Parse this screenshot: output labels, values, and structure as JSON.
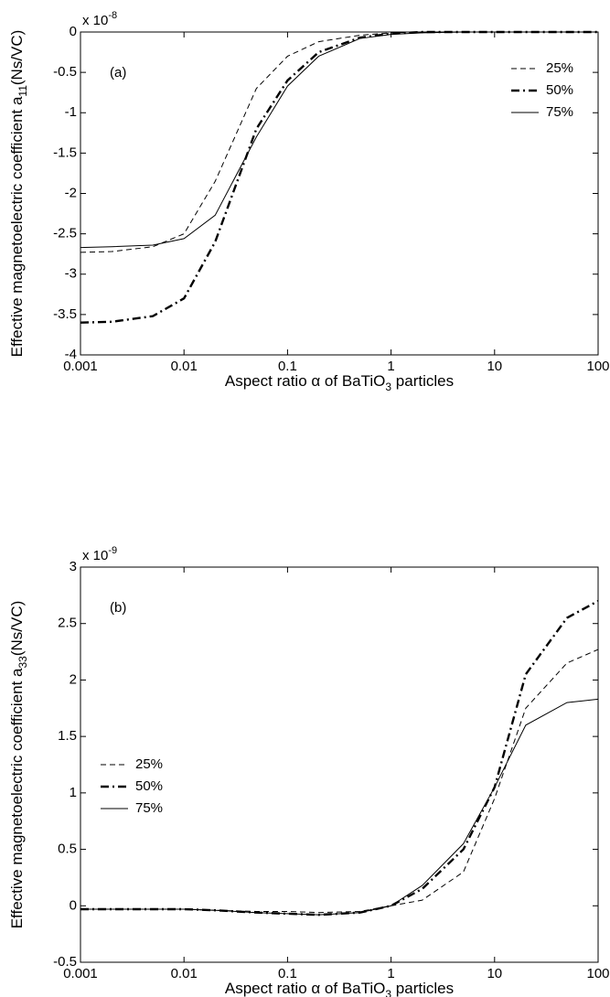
{
  "chart_data": [
    {
      "type": "line",
      "panel_label": "(a)",
      "multiplier": "x 10",
      "multiplier_exp": "-8",
      "xlabel": "Aspect ratio α of BaTiO",
      "xlabel_sub": "3",
      "xlabel_end": " particles",
      "ylabel": "Effective magnetoelectric coefficient a",
      "ylabel_sub": "11",
      "ylabel_end": "(Ns/VC)",
      "xscale": "log",
      "xlim": [
        0.001,
        100
      ],
      "xticks": [
        0.001,
        0.01,
        0.1,
        1,
        10,
        100
      ],
      "ylim": [
        -4,
        0
      ],
      "yticks": [
        -4,
        -3.5,
        -3,
        -2.5,
        -2,
        -1.5,
        -1,
        -0.5,
        0
      ],
      "legend": "upper right",
      "x": [
        0.001,
        0.002,
        0.005,
        0.01,
        0.02,
        0.05,
        0.1,
        0.2,
        0.5,
        1,
        2,
        5,
        10,
        20,
        50,
        100
      ],
      "series": [
        {
          "name": "25%",
          "color": "#000000",
          "dash": "dashed",
          "values": [
            -2.73,
            -2.72,
            -2.66,
            -2.5,
            -1.85,
            -0.7,
            -0.3,
            -0.12,
            -0.04,
            -0.01,
            0,
            0,
            0,
            0,
            0,
            0
          ]
        },
        {
          "name": "50%",
          "color": "#000000",
          "dash": "dashdot",
          "values": [
            -3.6,
            -3.59,
            -3.52,
            -3.3,
            -2.6,
            -1.2,
            -0.6,
            -0.25,
            -0.07,
            -0.02,
            0,
            0,
            0,
            0,
            0,
            0
          ]
        },
        {
          "name": "75%",
          "color": "#000000",
          "dash": "solid",
          "values": [
            -2.67,
            -2.66,
            -2.64,
            -2.56,
            -2.27,
            -1.3,
            -0.67,
            -0.3,
            -0.08,
            -0.03,
            -0.01,
            0,
            0,
            0,
            0,
            0
          ]
        }
      ]
    },
    {
      "type": "line",
      "panel_label": "(b)",
      "multiplier": "x 10",
      "multiplier_exp": "-9",
      "xlabel": "Aspect ratio α of BaTiO",
      "xlabel_sub": "3",
      "xlabel_end": " particles",
      "ylabel": "Effective magnetoelectric coefficient a",
      "ylabel_sub": "33",
      "ylabel_end": "(Ns/VC)",
      "xscale": "log",
      "xlim": [
        0.001,
        100
      ],
      "xticks": [
        0.001,
        0.01,
        0.1,
        1,
        10,
        100
      ],
      "ylim": [
        -0.5,
        3
      ],
      "yticks": [
        -0.5,
        0,
        0.5,
        1,
        1.5,
        2,
        2.5,
        3
      ],
      "legend": "center left",
      "x": [
        0.001,
        0.002,
        0.005,
        0.01,
        0.02,
        0.05,
        0.1,
        0.2,
        0.5,
        1,
        2,
        5,
        10,
        20,
        50,
        100
      ],
      "series": [
        {
          "name": "25%",
          "color": "#000000",
          "dash": "dashed",
          "values": [
            -0.03,
            -0.03,
            -0.03,
            -0.03,
            -0.04,
            -0.05,
            -0.05,
            -0.06,
            -0.05,
            0,
            0.05,
            0.3,
            0.95,
            1.75,
            2.15,
            2.27
          ]
        },
        {
          "name": "50%",
          "color": "#000000",
          "dash": "dashdot",
          "values": [
            -0.03,
            -0.03,
            -0.03,
            -0.03,
            -0.04,
            -0.06,
            -0.07,
            -0.08,
            -0.06,
            0,
            0.15,
            0.5,
            1.05,
            2.05,
            2.55,
            2.7
          ]
        },
        {
          "name": "75%",
          "color": "#000000",
          "dash": "solid",
          "values": [
            -0.03,
            -0.03,
            -0.03,
            -0.03,
            -0.04,
            -0.06,
            -0.07,
            -0.08,
            -0.06,
            0,
            0.18,
            0.55,
            1.05,
            1.6,
            1.8,
            1.83
          ]
        }
      ]
    }
  ]
}
